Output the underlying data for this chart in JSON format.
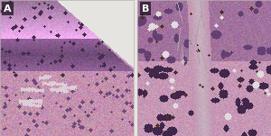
{
  "label_A": "A",
  "label_B": "B",
  "label_color": "white",
  "label_fontsize": 8,
  "label_fontweight": "bold",
  "label_bg": "#000000",
  "background_color": "#e8e4e0",
  "fig_width": 3.0,
  "fig_height": 1.51,
  "dpi": 100,
  "panel_sep_color": "#d0ccc8",
  "panel_A": {
    "base_pink": [
      195,
      155,
      185
    ],
    "dark_purple": [
      110,
      75,
      120
    ],
    "medium_purple": [
      150,
      100,
      155
    ],
    "light_pink": [
      210,
      175,
      200
    ],
    "white_area": [
      230,
      228,
      225
    ],
    "very_dark": [
      70,
      45,
      80
    ],
    "eosin_pink": [
      200,
      140,
      170
    ],
    "pale": [
      220,
      195,
      210
    ]
  },
  "panel_B": {
    "base_pink": [
      195,
      148,
      178
    ],
    "dark_purple": [
      100,
      65,
      115
    ],
    "medium_purple": [
      148,
      100,
      150
    ],
    "light_pink": [
      215,
      170,
      198
    ],
    "fiber_pale": [
      200,
      178,
      192
    ],
    "dark_brown": [
      80,
      50,
      40
    ],
    "very_dark": [
      65,
      40,
      75
    ],
    "pale_cell": [
      218,
      192,
      208
    ]
  }
}
